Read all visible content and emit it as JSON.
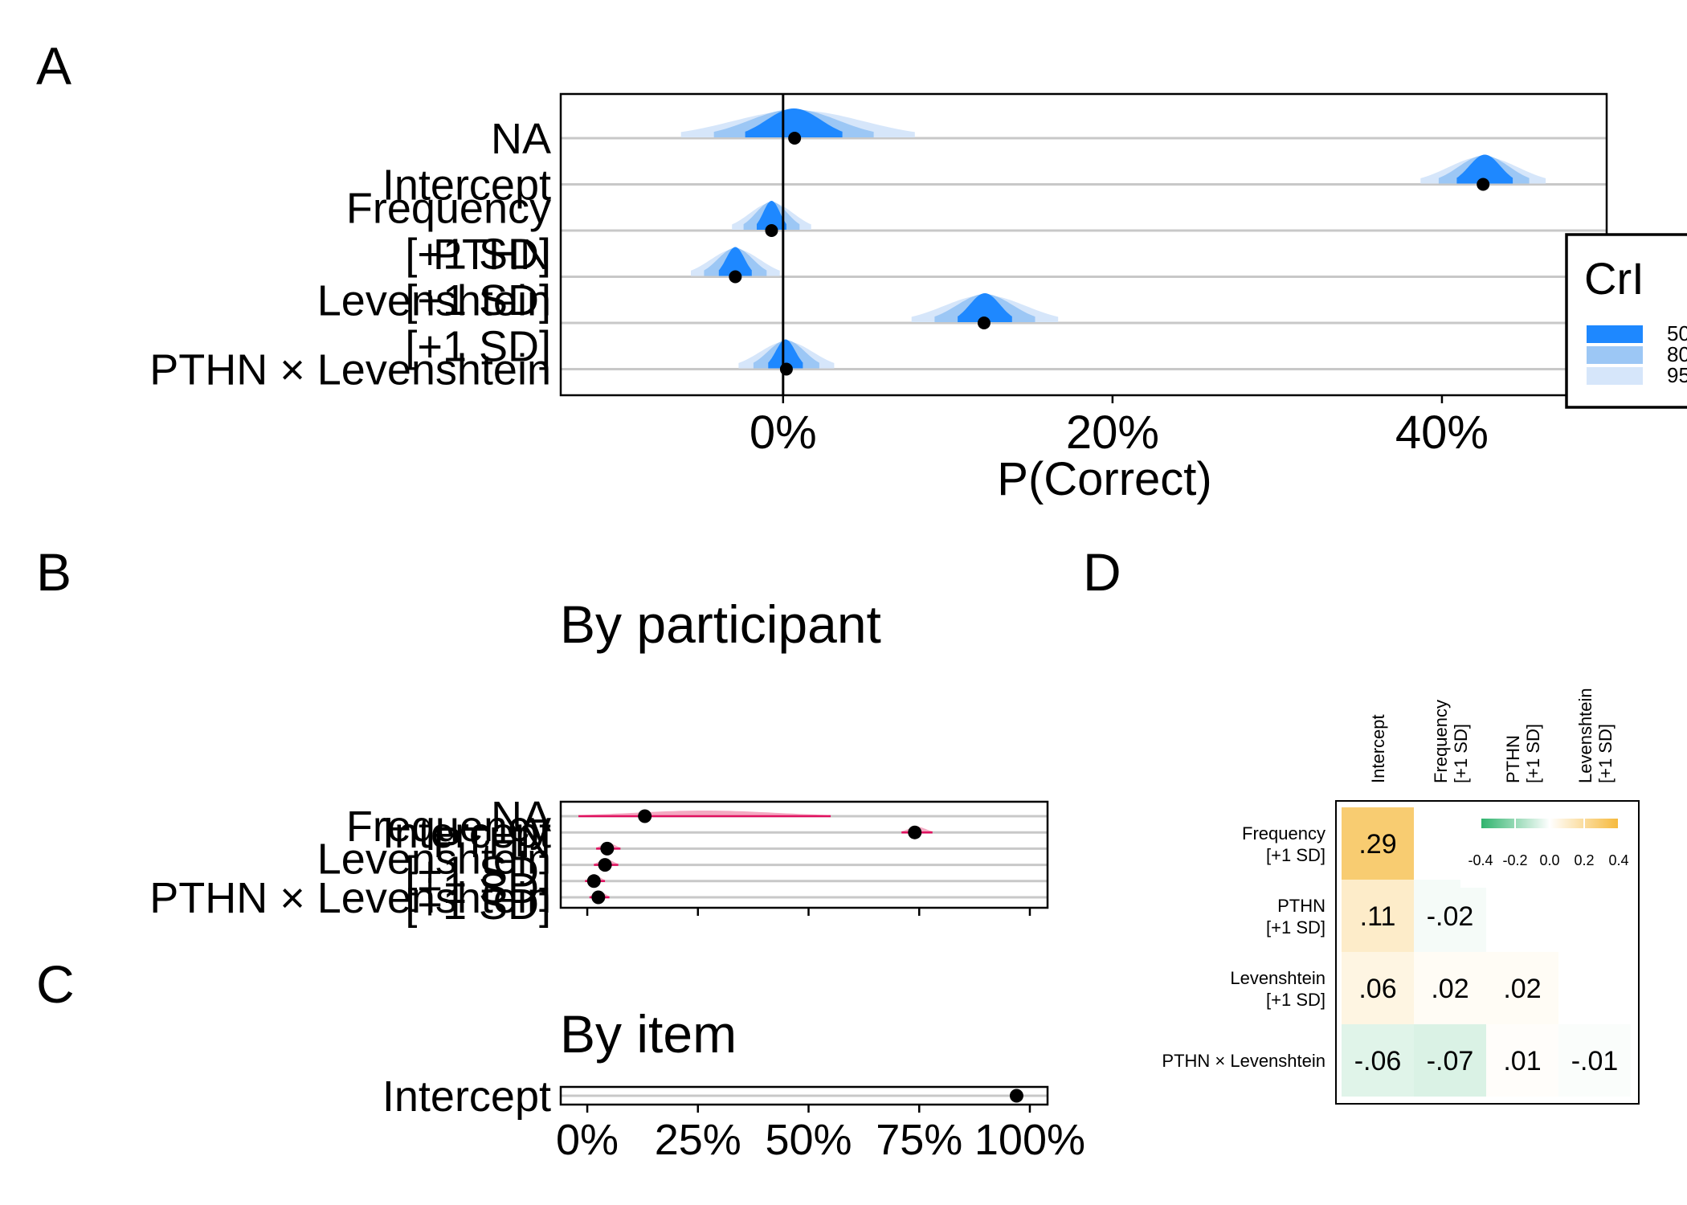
{
  "colors": {
    "crl50": "#1E88FF",
    "crl80": "#9CC7F5",
    "crl95": "#D6E6FA",
    "ranef_fill": "#F4A9C2",
    "ranef_dark": "#E0115F",
    "point": "#000000",
    "grid": "#C8C8C8",
    "frame": "#000000",
    "corr_neg": "#2DB36C",
    "corr_mid": "#FFFFFF",
    "corr_pos": "#F6B93B"
  },
  "chart_data": [
    {
      "panel": "A",
      "type": "interval-density",
      "xlabel": "P(Correct)",
      "xlim": [
        -0.135,
        0.5
      ],
      "xticks": [
        0,
        0.2,
        0.4
      ],
      "xtick_labels": [
        "0%",
        "20%",
        "40%"
      ],
      "rows": [
        {
          "label": "NA",
          "point": 0.007,
          "q50": [
            -0.023,
            0.036
          ],
          "q80": [
            -0.042,
            0.055
          ],
          "q95": [
            -0.062,
            0.08
          ]
        },
        {
          "label": "Intercept",
          "point": 0.425,
          "q50": [
            0.409,
            0.443
          ],
          "q80": [
            0.398,
            0.453
          ],
          "q95": [
            0.387,
            0.463
          ]
        },
        {
          "label": "Frequency\n[+1 SD]",
          "point": -0.007,
          "q50": [
            -0.016,
            0.002
          ],
          "q80": [
            -0.024,
            0.01
          ],
          "q95": [
            -0.031,
            0.017
          ]
        },
        {
          "label": "PTHN\n[+1 SD]",
          "point": -0.029,
          "q50": [
            -0.039,
            -0.019
          ],
          "q80": [
            -0.048,
            -0.01
          ],
          "q95": [
            -0.056,
            -0.002
          ]
        },
        {
          "label": "Levenshtein\n[+1 SD]",
          "point": 0.122,
          "q50": [
            0.106,
            0.139
          ],
          "q80": [
            0.092,
            0.153
          ],
          "q95": [
            0.078,
            0.167
          ]
        },
        {
          "label": "PTHN × Levenshtein",
          "point": 0.002,
          "q50": [
            -0.009,
            0.012
          ],
          "q80": [
            -0.018,
            0.022
          ],
          "q95": [
            -0.027,
            0.031
          ]
        }
      ],
      "legend": {
        "title": "CrI",
        "entries": [
          "50",
          "80",
          "95"
        ],
        "position": "right"
      }
    },
    {
      "panel": "B",
      "type": "interval-density",
      "title": "By participant",
      "xlim": [
        -0.06,
        1.04
      ],
      "xticks": [
        0,
        0.25,
        0.5,
        0.75,
        1
      ],
      "rows": [
        {
          "label": "NA",
          "point": 0.13,
          "q95": [
            -0.02,
            0.55
          ]
        },
        {
          "label": "Intercept",
          "point": 0.74,
          "q95": [
            0.71,
            0.78
          ]
        },
        {
          "label": "Frequency\n[+1 SD]",
          "point": 0.045,
          "q95": [
            0.02,
            0.075
          ]
        },
        {
          "label": "PTHN\n[+1 SD]",
          "point": 0.04,
          "q95": [
            0.015,
            0.07
          ]
        },
        {
          "label": "Levenshtein\n[+1 SD]",
          "point": 0.015,
          "q95": [
            -0.005,
            0.04
          ]
        },
        {
          "label": "PTHN × Levenshtein",
          "point": 0.025,
          "q95": [
            0.005,
            0.05
          ]
        }
      ]
    },
    {
      "panel": "C",
      "type": "interval-density",
      "title": "By item",
      "xlim": [
        -0.06,
        1.04
      ],
      "xticks": [
        0,
        0.25,
        0.5,
        0.75,
        1
      ],
      "xtick_labels": [
        "0%",
        "25%",
        "50%",
        "75%",
        "100%"
      ],
      "rows": [
        {
          "label": "Intercept",
          "point": 0.97,
          "q95": [
            0.955,
            0.985
          ]
        }
      ]
    },
    {
      "panel": "D",
      "type": "heatmap",
      "col_labels": [
        "Intercept",
        "Frequency\n[+1 SD]",
        "PTHN\n[+1 SD]",
        "Levenshtein\n[+1 SD]"
      ],
      "row_labels": [
        "Frequency\n[+1 SD]",
        "PTHN\n[+1 SD]",
        "Levenshtein\n[+1 SD]",
        "PTHN × Levenshtein"
      ],
      "cells": [
        [
          {
            "value": 0.29,
            "label": ".29"
          },
          null,
          null,
          null
        ],
        [
          {
            "value": 0.11,
            "label": ".11"
          },
          {
            "value": -0.02,
            "label": "-.02"
          },
          null,
          null
        ],
        [
          {
            "value": 0.06,
            "label": ".06"
          },
          {
            "value": 0.02,
            "label": ".02"
          },
          {
            "value": 0.02,
            "label": ".02"
          },
          null
        ],
        [
          {
            "value": -0.06,
            "label": "-.06"
          },
          {
            "value": -0.07,
            "label": "-.07"
          },
          {
            "value": 0.01,
            "label": ".01"
          },
          {
            "value": -0.01,
            "label": "-.01"
          }
        ]
      ],
      "colorbar": {
        "range": [
          -0.4,
          0.4
        ],
        "tick_labels": [
          "-0.4",
          "-0.2",
          "0.0",
          "0.2",
          "0.4"
        ]
      }
    }
  ],
  "panel_labels": {
    "a": "A",
    "b": "B",
    "c": "C",
    "d": "D"
  }
}
